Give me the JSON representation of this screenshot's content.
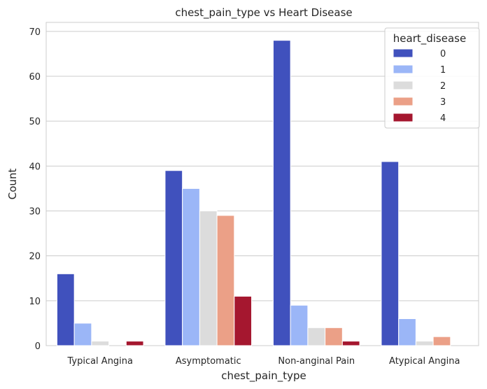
{
  "chart_data": {
    "type": "bar",
    "title": "chest_pain_type vs Heart Disease",
    "xlabel": "chest_pain_type",
    "ylabel": "Count",
    "ylim": [
      0,
      72
    ],
    "yticks": [
      0,
      10,
      20,
      30,
      40,
      50,
      60,
      70
    ],
    "grid": true,
    "legend_title": "heart_disease",
    "legend_position": "top-right",
    "categories": [
      "Typical Angina",
      "Asymptomatic",
      "Non-anginal Pain",
      "Atypical Angina"
    ],
    "series": [
      {
        "name": "0",
        "color": "#4051bd",
        "values": [
          16,
          39,
          68,
          41
        ]
      },
      {
        "name": "1",
        "color": "#9bb6f7",
        "values": [
          5,
          35,
          9,
          6
        ]
      },
      {
        "name": "2",
        "color": "#dcdcdc",
        "values": [
          1,
          30,
          4,
          1
        ]
      },
      {
        "name": "3",
        "color": "#eba087",
        "values": [
          0,
          29,
          4,
          2
        ]
      },
      {
        "name": "4",
        "color": "#a5172f",
        "values": [
          1,
          11,
          1,
          0
        ]
      }
    ]
  }
}
